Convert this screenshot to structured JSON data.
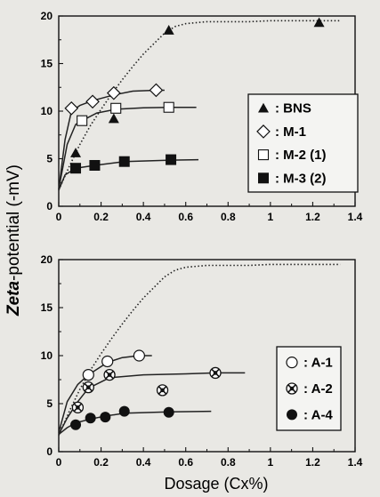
{
  "chart_data": [
    {
      "type": "scatter",
      "panel": "top",
      "xlim": [
        0,
        1.4
      ],
      "ylim": [
        0,
        20
      ],
      "xticks": [
        "0",
        "0.2",
        "0.4",
        "0.6",
        "0.8",
        "1",
        "1.2",
        "1.4"
      ],
      "yticks": [
        "0",
        "5",
        "10",
        "15",
        "20"
      ],
      "grid": false,
      "legend_position": "right",
      "legend": [
        {
          "label": "BNS",
          "separator": ":",
          "marker": "triangle-filled"
        },
        {
          "label": "M-1",
          "separator": ":",
          "marker": "diamond-open"
        },
        {
          "label": "M-2 (1)",
          "separator": ":",
          "marker": "square-open"
        },
        {
          "label": "M-3 (2)",
          "separator": ":",
          "marker": "square-filled"
        }
      ],
      "series": [
        {
          "name": "BNS",
          "marker": "triangle-filled",
          "line": "dotted",
          "x": [
            0.08,
            0.26,
            0.52,
            1.23
          ],
          "y": [
            5.6,
            9.2,
            18.5,
            19.3
          ],
          "curve": {
            "x": [
              0,
              0.05,
              0.1,
              0.15,
              0.2,
              0.25,
              0.3,
              0.35,
              0.4,
              0.45,
              0.5,
              0.55,
              0.6,
              0.7,
              0.8,
              0.9,
              1.0,
              1.1,
              1.2,
              1.3,
              1.33
            ],
            "y": [
              1.7,
              4.2,
              6.5,
              8.5,
              10.2,
              11.8,
              13.3,
              14.7,
              16.0,
              17.1,
              18.2,
              18.9,
              19.2,
              19.4,
              19.4,
              19.4,
              19.5,
              19.5,
              19.5,
              19.5,
              19.5
            ]
          }
        },
        {
          "name": "M-1",
          "marker": "diamond-open",
          "line": "solid",
          "x": [
            0.06,
            0.16,
            0.26,
            0.46
          ],
          "y": [
            10.3,
            11.0,
            11.9,
            12.2
          ],
          "curve": {
            "x": [
              0,
              0.03,
              0.06,
              0.1,
              0.16,
              0.26,
              0.35,
              0.46,
              0.5
            ],
            "y": [
              1.8,
              7.0,
              10.0,
              10.6,
              11.1,
              11.7,
              12.1,
              12.2,
              12.2
            ]
          }
        },
        {
          "name": "M-2 (1)",
          "marker": "square-open",
          "line": "solid",
          "x": [
            0.11,
            0.27,
            0.52
          ],
          "y": [
            9.0,
            10.3,
            10.4
          ],
          "curve": {
            "x": [
              0,
              0.04,
              0.08,
              0.11,
              0.18,
              0.27,
              0.4,
              0.52,
              0.65
            ],
            "y": [
              1.8,
              6.5,
              8.6,
              9.0,
              9.8,
              10.2,
              10.35,
              10.4,
              10.4
            ]
          }
        },
        {
          "name": "M-3 (2)",
          "marker": "square-filled",
          "line": "solid",
          "x": [
            0.08,
            0.17,
            0.31,
            0.53
          ],
          "y": [
            4.0,
            4.3,
            4.7,
            4.9
          ],
          "curve": {
            "x": [
              0,
              0.03,
              0.08,
              0.17,
              0.31,
              0.53,
              0.66
            ],
            "y": [
              1.7,
              3.3,
              4.0,
              4.3,
              4.7,
              4.85,
              4.9
            ]
          }
        }
      ]
    },
    {
      "type": "scatter",
      "panel": "bottom",
      "xlim": [
        0,
        1.4
      ],
      "ylim": [
        0,
        20
      ],
      "xticks": [
        "0",
        "0.2",
        "0.4",
        "0.6",
        "0.8",
        "1",
        "1.2",
        "1.4"
      ],
      "yticks": [
        "0",
        "5",
        "10",
        "15",
        "20"
      ],
      "grid": false,
      "legend_position": "bottom-right",
      "legend": [
        {
          "label": "A-1",
          "separator": ":",
          "marker": "circle-open"
        },
        {
          "label": "A-2",
          "separator": ":",
          "marker": "circle-crossed"
        },
        {
          "label": "A-4",
          "separator": ":",
          "marker": "circle-filled"
        }
      ],
      "series": [
        {
          "name": "",
          "marker": "none",
          "line": "dotted",
          "curve": {
            "x": [
              0,
              0.05,
              0.1,
              0.15,
              0.2,
              0.25,
              0.3,
              0.35,
              0.4,
              0.45,
              0.5,
              0.55,
              0.6,
              0.7,
              0.8,
              0.9,
              1.0,
              1.1,
              1.2,
              1.3,
              1.33
            ],
            "y": [
              1.7,
              4.2,
              6.5,
              8.5,
              10.2,
              11.8,
              13.3,
              14.7,
              16.0,
              17.1,
              18.2,
              18.9,
              19.2,
              19.4,
              19.4,
              19.4,
              19.5,
              19.5,
              19.5,
              19.5,
              19.5
            ]
          }
        },
        {
          "name": "A-1",
          "marker": "circle-open",
          "line": "solid",
          "x": [
            0.14,
            0.23,
            0.38
          ],
          "y": [
            8.0,
            9.4,
            10.0
          ],
          "curve": {
            "x": [
              0,
              0.04,
              0.09,
              0.14,
              0.23,
              0.3,
              0.38,
              0.44
            ],
            "y": [
              2.0,
              5.2,
              7.0,
              8.0,
              9.3,
              9.8,
              10.0,
              10.0
            ]
          }
        },
        {
          "name": "A-2",
          "marker": "circle-crossed",
          "line": "solid",
          "x": [
            0.09,
            0.14,
            0.24,
            0.49,
            0.74
          ],
          "y": [
            4.6,
            6.7,
            8.0,
            6.4,
            8.2
          ],
          "curve": {
            "x": [
              0,
              0.04,
              0.09,
              0.14,
              0.24,
              0.4,
              0.6,
              0.74,
              0.88
            ],
            "y": [
              1.8,
              3.5,
              5.2,
              6.6,
              7.7,
              8.0,
              8.1,
              8.2,
              8.2
            ]
          }
        },
        {
          "name": "A-4",
          "marker": "circle-filled",
          "line": "solid",
          "x": [
            0.08,
            0.15,
            0.22,
            0.31,
            0.52
          ],
          "y": [
            2.8,
            3.5,
            3.6,
            4.2,
            4.1
          ],
          "curve": {
            "x": [
              0,
              0.04,
              0.08,
              0.15,
              0.22,
              0.31,
              0.45,
              0.52,
              0.72
            ],
            "y": [
              1.8,
              2.5,
              3.0,
              3.4,
              3.7,
              4.0,
              4.1,
              4.15,
              4.2
            ]
          }
        }
      ]
    }
  ],
  "axes": {
    "ylabel_italic": "Zeta",
    "ylabel_rest": "-potential (-mV)",
    "xlabel": "Dosage (Cx%)"
  }
}
